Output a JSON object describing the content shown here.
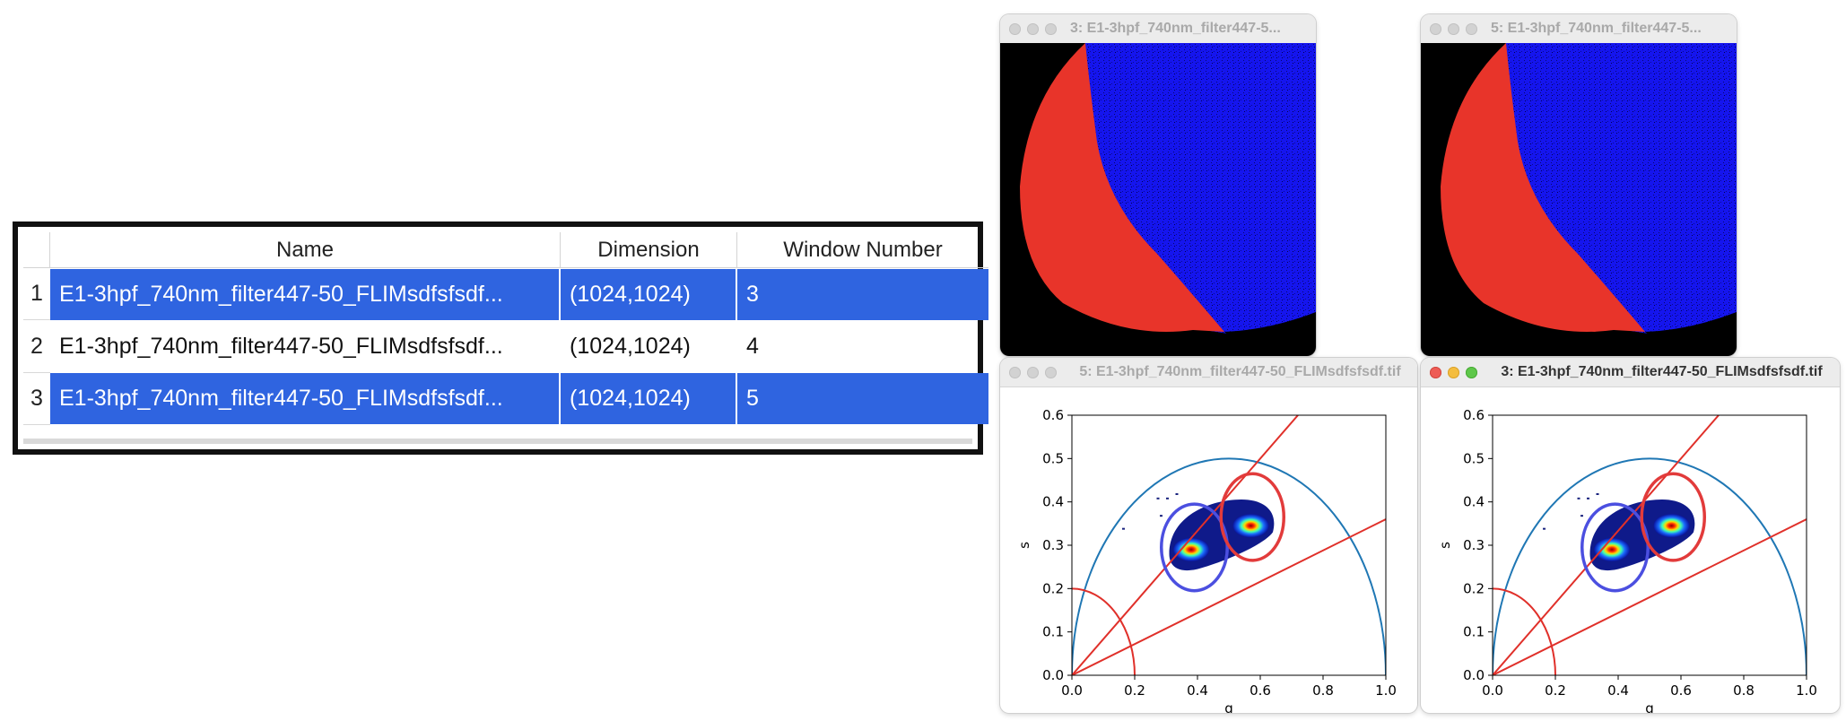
{
  "table": {
    "headers": [
      "Name",
      "Dimension",
      "Window Number"
    ],
    "rows": [
      {
        "num": "1",
        "name": "E1-3hpf_740nm_filter447-50_FLIMsdfsfsdf...",
        "dimension": "(1024,1024)",
        "window": "3",
        "selected": true
      },
      {
        "num": "2",
        "name": "E1-3hpf_740nm_filter447-50_FLIMsdfsfsdf...",
        "dimension": "(1024,1024)",
        "window": "4",
        "selected": false
      },
      {
        "num": "3",
        "name": "E1-3hpf_740nm_filter447-50_FLIMsdfsfsdf...",
        "dimension": "(1024,1024)",
        "window": "5",
        "selected": true
      }
    ]
  },
  "windows": {
    "img3": {
      "title": "3: E1-3hpf_740nm_filter447-5..."
    },
    "img5": {
      "title": "5: E1-3hpf_740nm_filter447-5..."
    },
    "plot5": {
      "title": "5: E1-3hpf_740nm_filter447-50_FLIMsdfsfsdf.tif"
    },
    "plot3": {
      "title": "3: E1-3hpf_740nm_filter447-50_FLIMsdfsfsdf.tif"
    }
  },
  "colors": {
    "selection": "#2f64e0",
    "semicircle": "#1f77b4",
    "red_lines": "#e0302a",
    "roi_red": "#e23b3b",
    "roi_blue": "#4b4fe0",
    "image_red": "#e8342a",
    "image_blue": "#1515ee"
  },
  "chart_data": [
    {
      "type": "scatter",
      "title": "",
      "xlabel": "g",
      "ylabel": "s",
      "xlim": [
        0.0,
        1.0
      ],
      "ylim": [
        0.0,
        0.6
      ],
      "xticks": [
        "0.0",
        "0.2",
        "0.4",
        "0.6",
        "0.8",
        "1.0"
      ],
      "yticks": [
        "0.0",
        "0.1",
        "0.2",
        "0.3",
        "0.4",
        "0.5",
        "0.6"
      ],
      "semicircle": {
        "center": [
          0.5,
          0
        ],
        "radius": 0.5
      },
      "small_arc": {
        "center": [
          0,
          0
        ],
        "radius": 0.2
      },
      "lines": [
        {
          "from": [
            0,
            0
          ],
          "to": [
            0.72,
            0.6
          ]
        },
        {
          "from": [
            0,
            0
          ],
          "to": [
            1.0,
            0.36
          ]
        }
      ],
      "roi_circles": [
        {
          "center": [
            0.39,
            0.295
          ],
          "r_g": 0.105,
          "r_s": 0.1,
          "color": "blue"
        },
        {
          "center": [
            0.575,
            0.365
          ],
          "r_g": 0.1,
          "r_s": 0.1,
          "color": "red"
        }
      ],
      "hotspots": [
        {
          "g": 0.38,
          "s": 0.29
        },
        {
          "g": 0.57,
          "s": 0.345
        }
      ]
    },
    {
      "type": "scatter",
      "title": "",
      "xlabel": "g",
      "ylabel": "s",
      "xlim": [
        0.0,
        1.0
      ],
      "ylim": [
        0.0,
        0.6
      ],
      "xticks": [
        "0.0",
        "0.2",
        "0.4",
        "0.6",
        "0.8",
        "1.0"
      ],
      "yticks": [
        "0.0",
        "0.1",
        "0.2",
        "0.3",
        "0.4",
        "0.5",
        "0.6"
      ],
      "semicircle": {
        "center": [
          0.5,
          0
        ],
        "radius": 0.5
      },
      "small_arc": {
        "center": [
          0,
          0
        ],
        "radius": 0.2
      },
      "lines": [
        {
          "from": [
            0,
            0
          ],
          "to": [
            0.72,
            0.6
          ]
        },
        {
          "from": [
            0,
            0
          ],
          "to": [
            1.0,
            0.36
          ]
        }
      ],
      "roi_circles": [
        {
          "center": [
            0.39,
            0.295
          ],
          "r_g": 0.105,
          "r_s": 0.1,
          "color": "blue"
        },
        {
          "center": [
            0.575,
            0.365
          ],
          "r_g": 0.1,
          "r_s": 0.1,
          "color": "red"
        }
      ],
      "hotspots": [
        {
          "g": 0.38,
          "s": 0.29
        },
        {
          "g": 0.57,
          "s": 0.345
        }
      ]
    }
  ]
}
